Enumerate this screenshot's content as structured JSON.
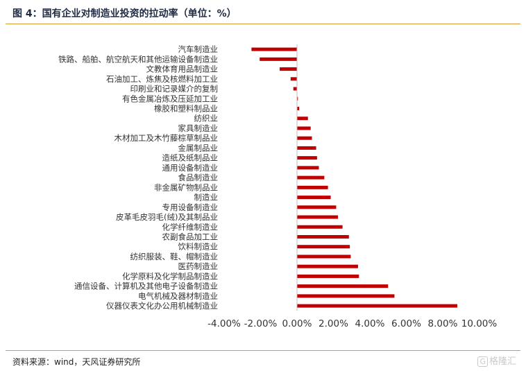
{
  "header": {
    "title": "图 4：国有企业对制造业投资的拉动率（单位：%）"
  },
  "footer": {
    "source": "资料来源：wind，天风证券研究所",
    "watermark_text": "格隆汇",
    "watermark_icon": "G"
  },
  "colors": {
    "bar": "#c00000",
    "rule": "#d79a3a",
    "axis": "#bfbfbf"
  },
  "chart_data": {
    "type": "bar",
    "orientation": "horizontal",
    "title": "",
    "xlabel": "",
    "ylabel": "",
    "xlim": [
      -4,
      10
    ],
    "x_ticks": [
      "-4.00%",
      "-2.00%",
      "0.00%",
      "2.00%",
      "4.00%",
      "6.00%",
      "8.00%",
      "10.00%"
    ],
    "grid": false,
    "legend": false,
    "categories": [
      "汽车制造业",
      "铁路、船舶、航空航天和其他运输设备制造业",
      "文教体育用品制造业",
      "石油加工、炼焦及核燃料加工业",
      "印刷业和记录媒介的复制",
      "有色金属冶炼及压延加工业",
      "橡胶和塑料制品业",
      "纺织业",
      "家具制造业",
      "木材加工及木竹藤棕草制品业",
      "金属制品业",
      "造纸及纸制品业",
      "通用设备制造业",
      "食品制造业",
      "非金属矿物制品业",
      "制造业",
      "专用设备制造业",
      "皮革毛皮羽毛(绒)及其制品业",
      "化学纤维制造业",
      "农副食品加工业",
      "饮料制造业",
      "纺织服装、鞋、帽制造业",
      "医药制造业",
      "化学原料及化学制品制造业",
      "通信设备、计算机及其他电子设备制造业",
      "电气机械及器材制造业",
      "仪器仪表文化办公用机械制造业"
    ],
    "values": [
      -2.5,
      -2.05,
      -0.95,
      -0.35,
      -0.2,
      0.05,
      0.12,
      0.6,
      0.75,
      0.82,
      1.05,
      1.1,
      1.2,
      1.5,
      1.7,
      1.85,
      2.15,
      2.25,
      2.5,
      2.85,
      2.9,
      2.95,
      3.35,
      3.4,
      5.0,
      5.35,
      8.8
    ]
  }
}
